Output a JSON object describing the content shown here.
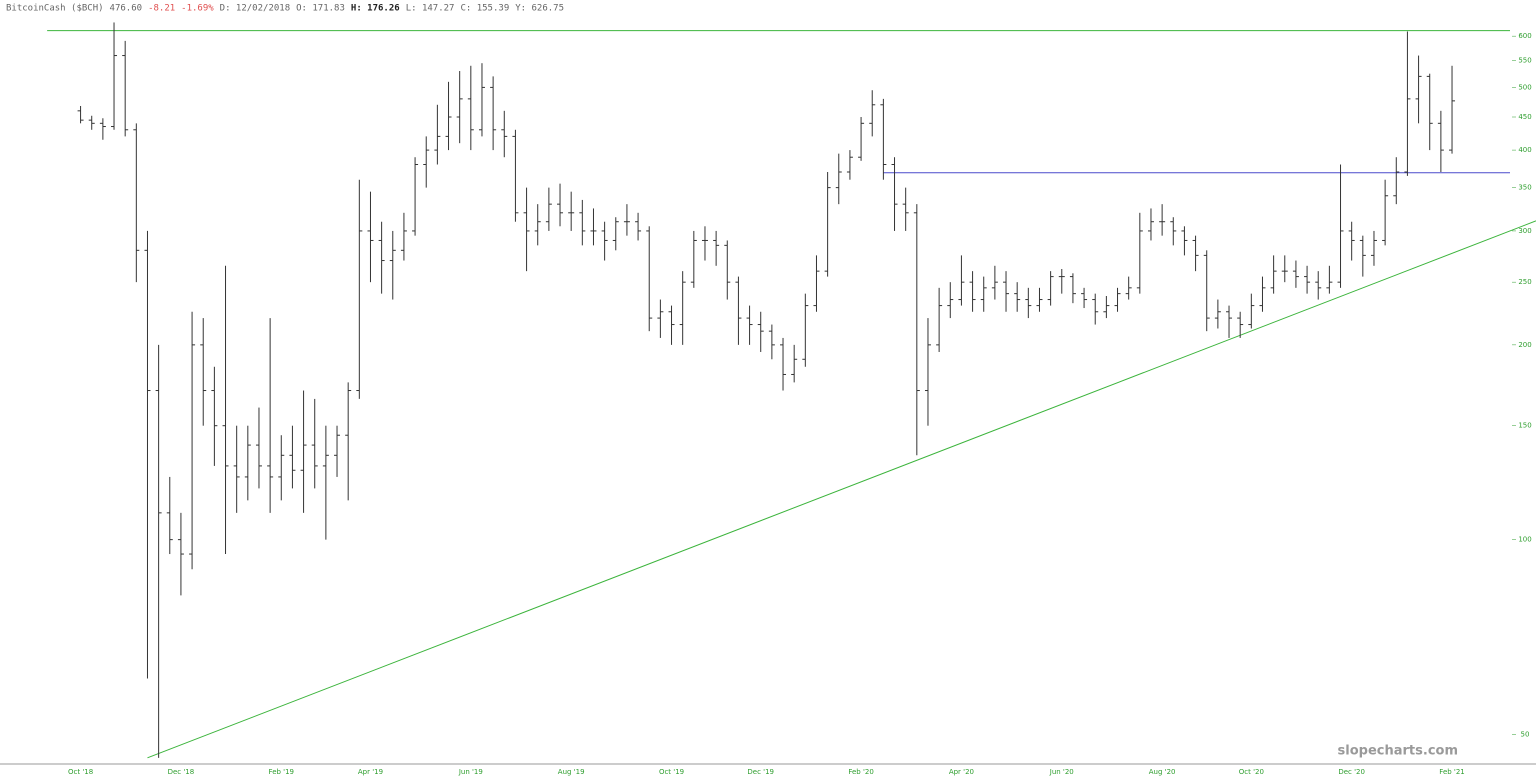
{
  "chart_data": {
    "type": "ohlc",
    "info": [
      "BitcoinCash ($BCH)",
      "476.60",
      "-8.21",
      "-1.69%",
      "D: 12/02/2018",
      "O: 171.83",
      "H: 176.26",
      "L: 147.27",
      "C: 155.39",
      "Y: 626.75"
    ],
    "watermark": "slopecharts.com",
    "categories": [
      "Oct '18",
      null,
      null,
      null,
      null,
      null,
      null,
      null,
      null,
      "Dec '18",
      null,
      null,
      null,
      null,
      null,
      null,
      null,
      null,
      "Feb '19",
      null,
      null,
      null,
      null,
      null,
      null,
      null,
      "Apr '19",
      null,
      null,
      null,
      null,
      null,
      null,
      null,
      null,
      "Jun '19",
      null,
      null,
      null,
      null,
      null,
      null,
      null,
      null,
      "Aug '19",
      null,
      null,
      null,
      null,
      null,
      null,
      null,
      null,
      "Oct '19",
      null,
      null,
      null,
      null,
      null,
      null,
      null,
      "Dec '19",
      null,
      null,
      null,
      null,
      null,
      null,
      null,
      null,
      "Feb '20",
      null,
      null,
      null,
      null,
      null,
      null,
      null,
      null,
      "Apr '20",
      null,
      null,
      null,
      null,
      null,
      null,
      null,
      null,
      "Jun '20",
      null,
      null,
      null,
      null,
      null,
      null,
      null,
      null,
      "Aug '20",
      null,
      null,
      null,
      null,
      null,
      null,
      null,
      "Oct '20",
      null,
      null,
      null,
      null,
      null,
      null,
      null,
      null,
      "Dec '20",
      null,
      null,
      null,
      null,
      null,
      null,
      null,
      null,
      "Feb '21"
    ],
    "open": [
      460,
      445,
      440,
      435,
      560,
      430,
      280,
      170,
      110,
      100,
      95,
      200,
      170,
      150,
      130,
      125,
      140,
      130,
      125,
      135,
      128,
      140,
      130,
      135,
      145,
      170,
      300,
      290,
      270,
      280,
      300,
      380,
      400,
      420,
      450,
      480,
      430,
      500,
      430,
      420,
      320,
      300,
      310,
      330,
      320,
      320,
      300,
      300,
      290,
      310,
      310,
      300,
      220,
      225,
      215,
      250,
      290,
      290,
      285,
      250,
      220,
      215,
      210,
      200,
      180,
      190,
      230,
      260,
      350,
      370,
      390,
      440,
      470,
      380,
      330,
      320,
      170,
      200,
      230,
      235,
      250,
      235,
      245,
      250,
      240,
      235,
      230,
      235,
      255,
      255,
      240,
      235,
      225,
      230,
      240,
      245,
      300,
      310,
      310,
      300,
      290,
      275,
      220,
      225,
      220,
      215,
      230,
      245,
      260,
      260,
      255,
      250,
      245,
      250,
      300,
      290,
      275,
      290,
      340,
      370,
      480,
      520,
      440,
      400
    ],
    "high": [
      468,
      452,
      448,
      630,
      590,
      440,
      300,
      200,
      125,
      110,
      225,
      220,
      185,
      265,
      150,
      150,
      160,
      220,
      145,
      150,
      170,
      165,
      150,
      150,
      175,
      360,
      345,
      310,
      300,
      320,
      390,
      420,
      470,
      510,
      530,
      540,
      545,
      520,
      460,
      430,
      350,
      330,
      350,
      355,
      345,
      335,
      325,
      310,
      315,
      330,
      320,
      305,
      235,
      230,
      260,
      300,
      305,
      300,
      290,
      255,
      230,
      225,
      215,
      205,
      200,
      240,
      275,
      370,
      395,
      400,
      450,
      495,
      480,
      390,
      350,
      330,
      220,
      245,
      250,
      275,
      260,
      255,
      265,
      260,
      250,
      245,
      245,
      260,
      262,
      258,
      245,
      240,
      238,
      245,
      255,
      320,
      325,
      330,
      315,
      305,
      295,
      280,
      235,
      230,
      225,
      240,
      255,
      275,
      275,
      270,
      265,
      260,
      265,
      380,
      310,
      295,
      300,
      360,
      390,
      610,
      560,
      525,
      460,
      540
    ],
    "low": [
      440,
      430,
      415,
      430,
      420,
      250,
      61,
      46,
      95,
      82,
      90,
      150,
      130,
      95,
      110,
      115,
      120,
      110,
      115,
      120,
      110,
      120,
      100,
      125,
      115,
      165,
      250,
      240,
      235,
      270,
      295,
      350,
      380,
      400,
      410,
      400,
      420,
      400,
      390,
      310,
      260,
      285,
      300,
      305,
      300,
      285,
      285,
      270,
      280,
      295,
      290,
      210,
      205,
      200,
      200,
      245,
      270,
      265,
      235,
      200,
      200,
      195,
      190,
      170,
      175,
      185,
      225,
      255,
      330,
      360,
      385,
      420,
      360,
      300,
      300,
      135,
      150,
      195,
      220,
      230,
      225,
      225,
      235,
      225,
      225,
      220,
      225,
      230,
      240,
      232,
      228,
      215,
      220,
      225,
      235,
      240,
      290,
      295,
      285,
      275,
      260,
      210,
      212,
      205,
      205,
      212,
      225,
      240,
      250,
      245,
      240,
      235,
      240,
      245,
      270,
      255,
      265,
      285,
      330,
      365,
      440,
      400,
      370,
      395
    ],
    "close": [
      445,
      440,
      435,
      560,
      430,
      280,
      170,
      110,
      100,
      95,
      200,
      170,
      150,
      130,
      125,
      140,
      130,
      125,
      135,
      128,
      140,
      130,
      135,
      145,
      170,
      300,
      290,
      270,
      280,
      300,
      380,
      400,
      420,
      450,
      480,
      430,
      500,
      430,
      420,
      320,
      300,
      310,
      330,
      320,
      320,
      300,
      300,
      290,
      310,
      310,
      300,
      220,
      225,
      215,
      250,
      290,
      290,
      285,
      250,
      220,
      215,
      210,
      200,
      180,
      190,
      230,
      260,
      350,
      370,
      390,
      440,
      470,
      380,
      330,
      320,
      170,
      200,
      230,
      235,
      250,
      235,
      245,
      250,
      240,
      235,
      230,
      235,
      255,
      255,
      240,
      235,
      225,
      230,
      240,
      245,
      300,
      310,
      310,
      300,
      290,
      275,
      220,
      225,
      220,
      215,
      230,
      245,
      260,
      260,
      255,
      250,
      245,
      250,
      300,
      290,
      275,
      290,
      340,
      370,
      480,
      520,
      440,
      400,
      476.6
    ],
    "bar_color": "#333333",
    "ylim": [
      45,
      680
    ],
    "yticks": [
      50,
      100,
      150,
      200,
      250,
      300,
      350,
      400,
      450,
      500,
      550,
      600
    ],
    "log_scale": true,
    "axis_color": "#2e9e2e",
    "hlines": [
      {
        "value": 612,
        "from": -3,
        "color": "#3cb43c"
      },
      {
        "value": 369,
        "from": 72,
        "color": "#4a4acc"
      }
    ],
    "trendlines": [
      {
        "points": [
          [
            6,
            46
          ],
          [
            123,
            277
          ]
        ],
        "color": "#3cb43c"
      }
    ]
  }
}
